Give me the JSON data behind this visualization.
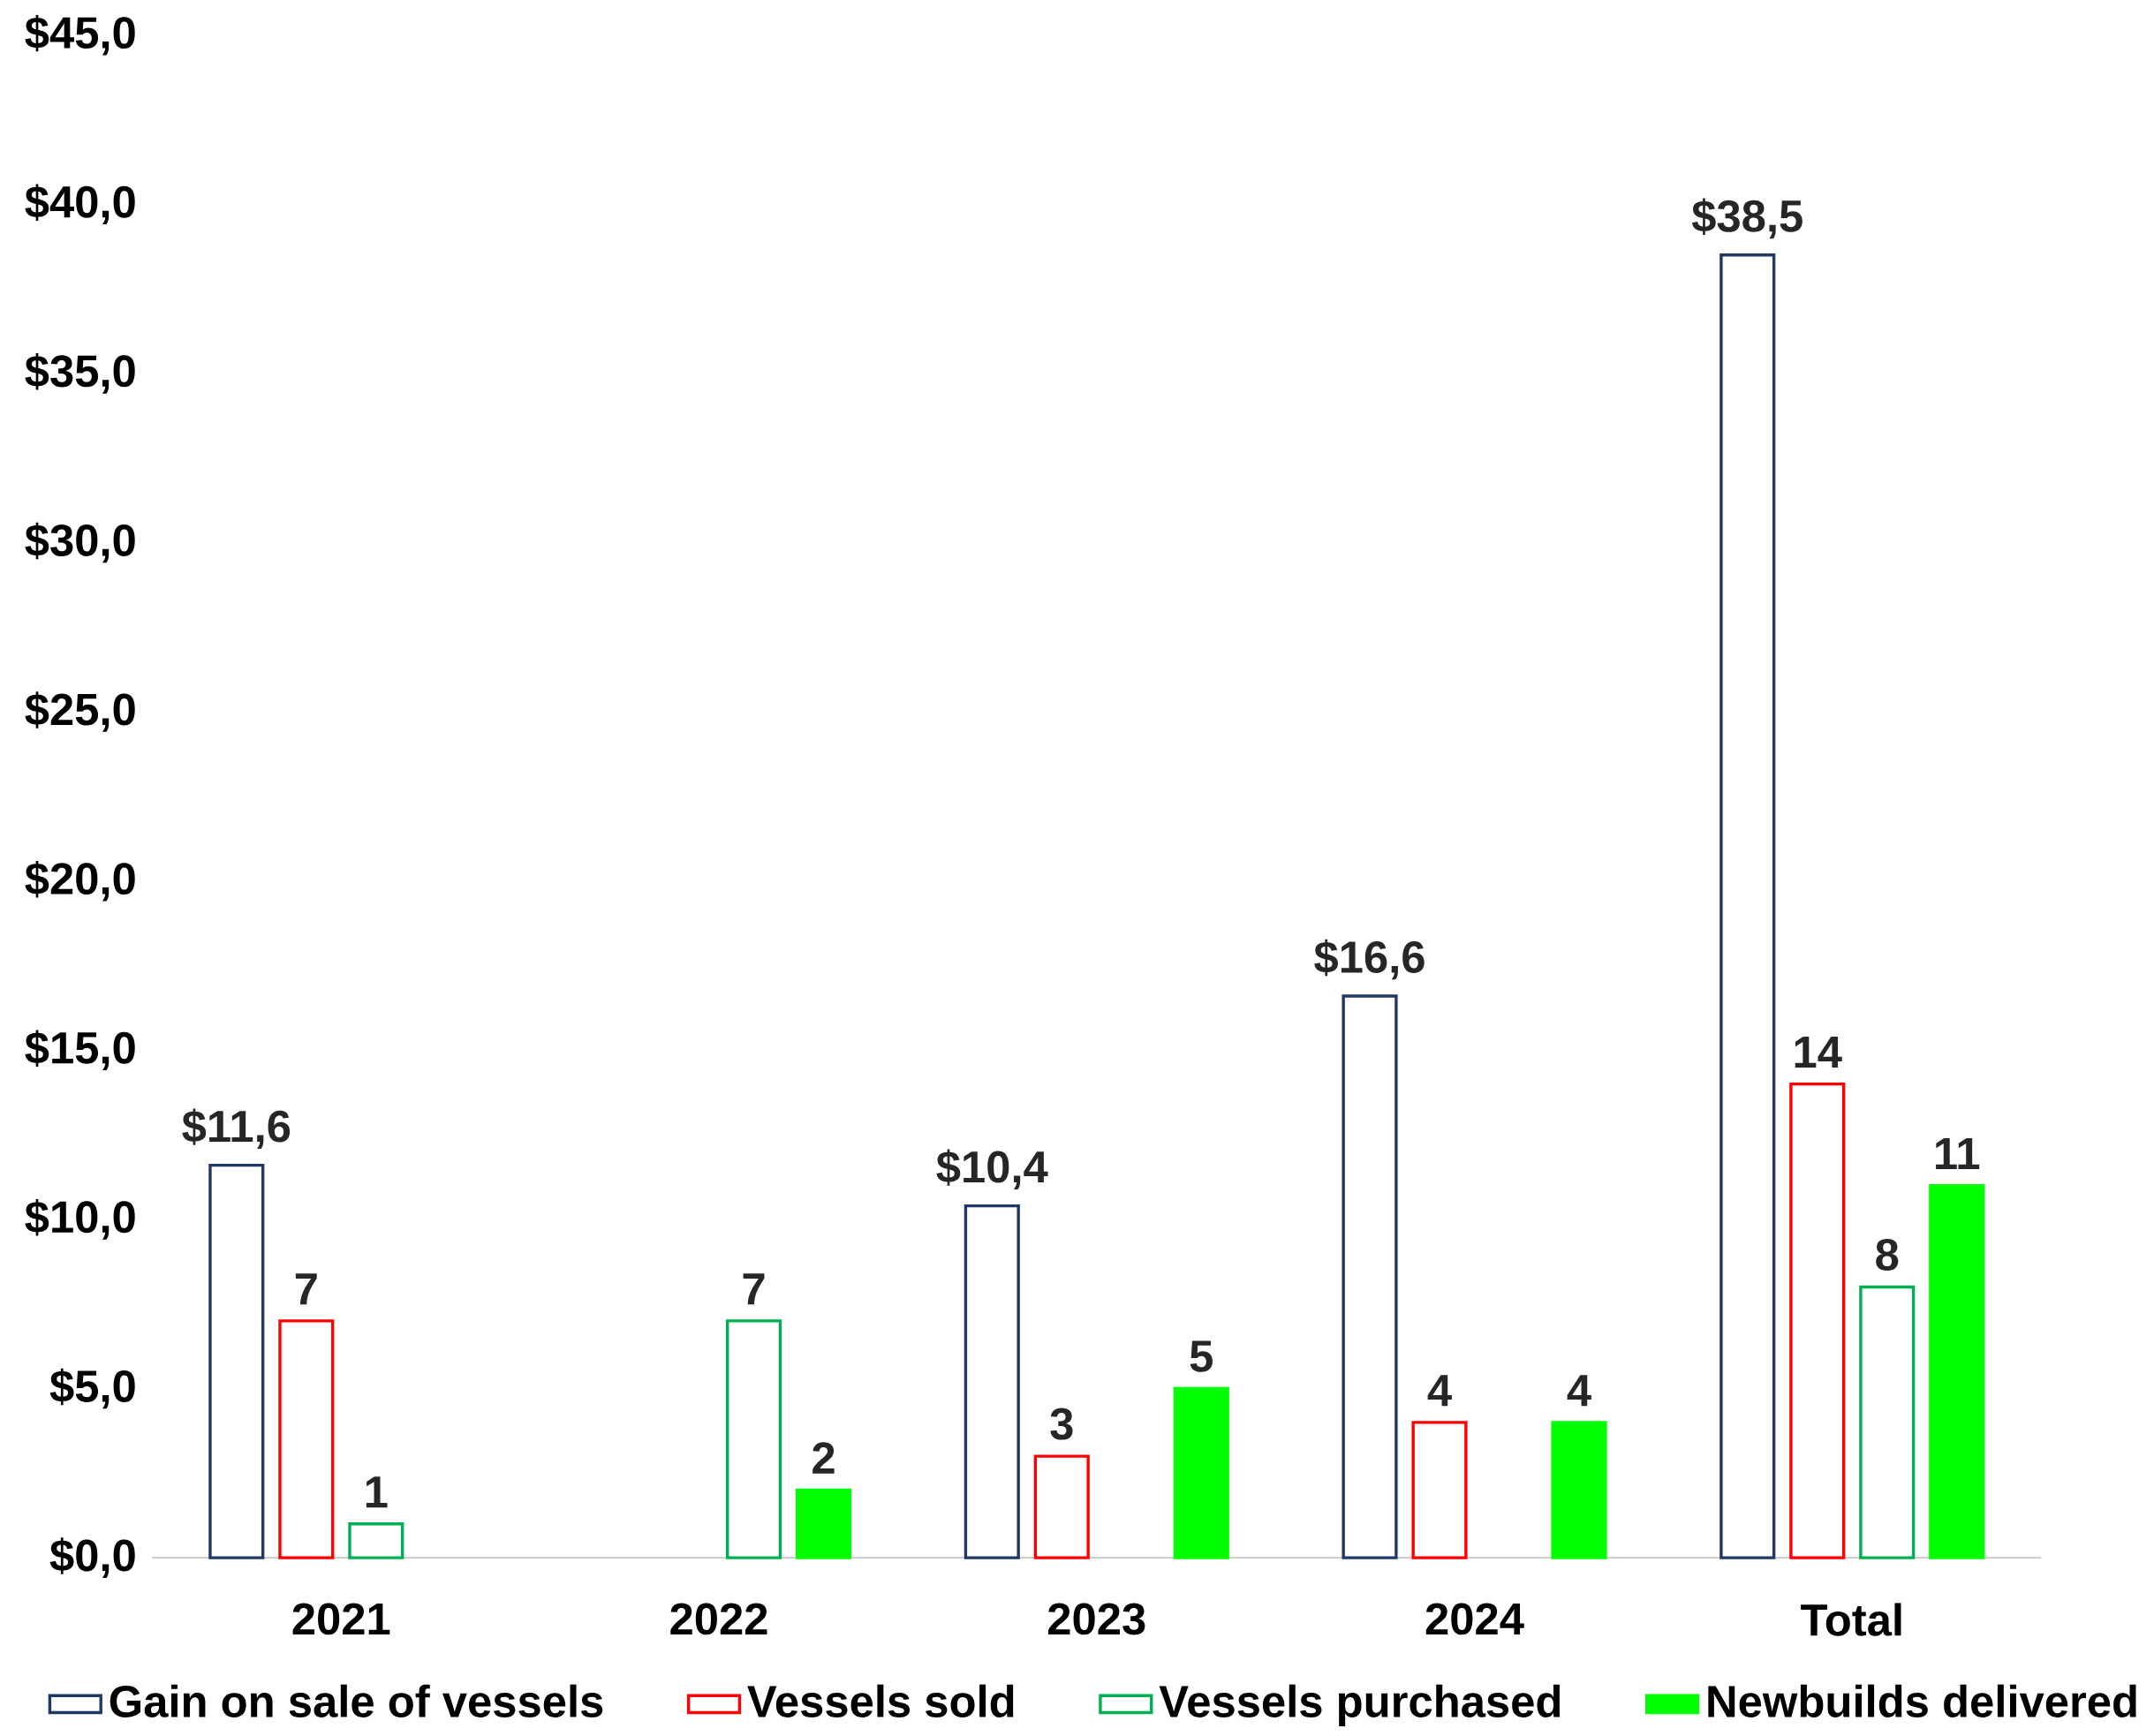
{
  "chart_data": {
    "type": "bar",
    "categories": [
      "2021",
      "2022",
      "2023",
      "2024",
      "Total"
    ],
    "series": [
      {
        "name": "Gain on sale of vessels",
        "color": "#203864",
        "values": [
          11.6,
          null,
          10.4,
          16.6,
          38.5
        ],
        "value_labels": [
          "$11,6",
          null,
          "$10,4",
          "$16,6",
          "$38,5"
        ]
      },
      {
        "name": "Vessels sold",
        "color": "#ff0000",
        "values": [
          7,
          null,
          3,
          4,
          14
        ],
        "value_labels": [
          "7",
          null,
          "3",
          "4",
          "14"
        ]
      },
      {
        "name": "Vessels purchased",
        "color": "#00b050",
        "values": [
          1,
          7,
          null,
          null,
          8
        ],
        "value_labels": [
          "1",
          "7",
          null,
          null,
          "8"
        ]
      },
      {
        "name": "Newbuilds delivered",
        "color": "#00ff00",
        "values": [
          null,
          2,
          5,
          4,
          11
        ],
        "value_labels": [
          null,
          "2",
          "5",
          "4",
          "11"
        ]
      }
    ],
    "ylim": [
      0,
      45
    ],
    "yticks": [
      {
        "value": 0,
        "label": "$0,0"
      },
      {
        "value": 5,
        "label": "$5,0"
      },
      {
        "value": 10,
        "label": "$10,0"
      },
      {
        "value": 15,
        "label": "$15,0"
      },
      {
        "value": 20,
        "label": "$20,0"
      },
      {
        "value": 25,
        "label": "$25,0"
      },
      {
        "value": 30,
        "label": "$30,0"
      },
      {
        "value": 35,
        "label": "$35,0"
      },
      {
        "value": 40,
        "label": "$40,0"
      },
      {
        "value": 45,
        "label": "$45,0"
      }
    ],
    "grid": false,
    "legend": "bottom"
  }
}
